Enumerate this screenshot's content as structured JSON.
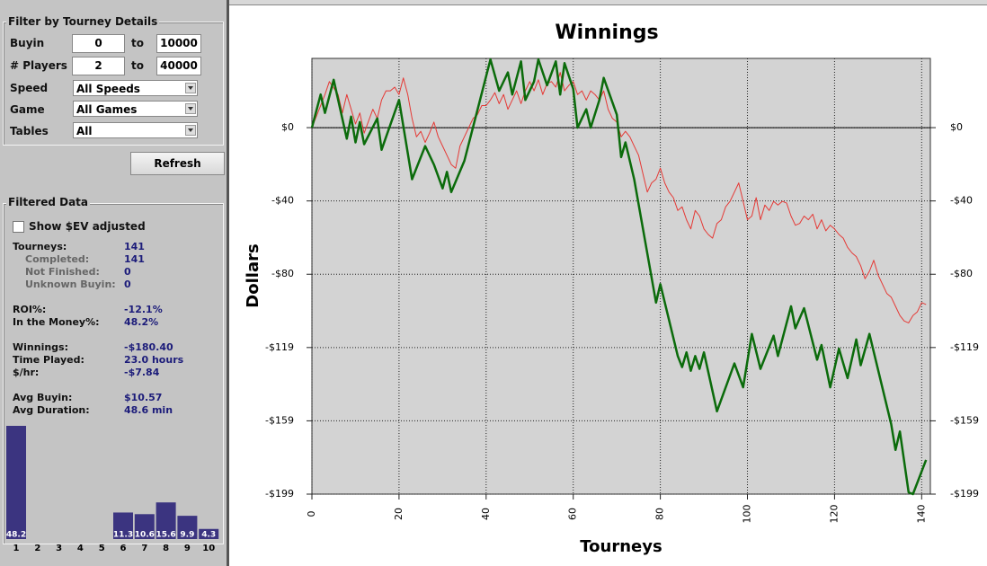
{
  "filter": {
    "title": "Filter by Tourney Details",
    "ranges": [
      {
        "label": "Buyin",
        "from": "0",
        "sep": "to",
        "to": "10000"
      },
      {
        "label": "# Players",
        "from": "2",
        "sep": "to",
        "to": "40000"
      }
    ],
    "selects": [
      {
        "label": "Speed",
        "value": "All Speeds"
      },
      {
        "label": "Game",
        "value": "All Games"
      },
      {
        "label": "Tables",
        "value": "All"
      }
    ],
    "button": "Refresh"
  },
  "filtered": {
    "title": "Filtered Data",
    "checkbox": "Show $EV adjusted",
    "stats": [
      [
        "Tourneys:",
        "141"
      ],
      [
        "Completed:",
        "141"
      ],
      [
        "Not Finished:",
        "0"
      ],
      [
        "Unknown Buyin:",
        "0"
      ],
      [
        "ROI%:",
        "-12.1%"
      ],
      [
        "In the Money%:",
        "48.2%"
      ],
      [
        "Winnings:",
        "-$180.40"
      ],
      [
        "Time Played:",
        "23.0 hours"
      ],
      [
        "$/hr:",
        "-$7.84"
      ],
      [
        "Avg Buyin:",
        "$10.57"
      ],
      [
        "Avg Duration:",
        "48.6 min"
      ]
    ]
  },
  "chart_data": [
    {
      "type": "line",
      "title": "Winnings",
      "x_label": "Tourneys",
      "y_label": "Dollars",
      "xlim": [
        0,
        142
      ],
      "ylim": [
        -199,
        37.6
      ],
      "xticks": [
        0,
        20,
        40,
        60,
        80,
        100,
        120,
        140
      ],
      "yticks": [
        {
          "value": 0,
          "label": "$0"
        },
        {
          "value": -39.8,
          "label": "-$40"
        },
        {
          "value": -79.6,
          "label": "-$80"
        },
        {
          "value": -119.4,
          "label": "-$119"
        },
        {
          "value": -159.2,
          "label": "-$159"
        },
        {
          "value": -199,
          "label": "-$199"
        }
      ],
      "grid": true,
      "series": [
        {
          "color": "#e53935",
          "width": 1,
          "x": [
            0,
            2,
            3,
            4,
            6,
            7,
            8,
            10,
            11,
            12,
            14,
            15,
            16,
            17,
            18,
            19,
            20,
            21,
            22,
            23,
            24,
            25,
            26,
            27,
            28,
            29,
            30,
            31,
            32,
            33,
            34,
            35,
            36,
            37,
            38,
            39,
            40,
            41,
            42,
            43,
            44,
            45,
            46,
            47,
            48,
            49,
            50,
            51,
            52,
            53,
            54,
            55,
            56,
            57,
            58,
            59,
            60,
            61,
            62,
            63,
            64,
            65,
            66,
            67,
            68,
            69,
            70,
            71,
            72,
            73,
            74,
            75,
            76,
            77,
            78,
            79,
            80,
            81,
            82,
            83,
            84,
            85,
            86,
            87,
            88,
            89,
            90,
            91,
            92,
            93,
            94,
            95,
            96,
            97,
            98,
            99,
            100,
            101,
            102,
            103,
            104,
            105,
            106,
            107,
            108,
            109,
            110,
            111,
            112,
            113,
            114,
            115,
            116,
            117,
            118,
            119,
            120,
            121,
            122,
            123,
            124,
            125,
            126,
            127,
            128,
            129,
            130,
            131,
            132,
            133,
            134,
            135,
            136,
            137,
            138,
            139,
            140,
            141
          ],
          "values": [
            0,
            12,
            18,
            25,
            18,
            8,
            18,
            2,
            8,
            -3,
            10,
            5,
            15,
            20,
            20,
            22,
            18,
            27,
            18,
            5,
            -5,
            -2,
            -8,
            -3,
            3,
            -5,
            -10,
            -15,
            -20,
            -22,
            -10,
            -5,
            0,
            5,
            7,
            12,
            12,
            15,
            19,
            13,
            18,
            10,
            15,
            20,
            13,
            20,
            25,
            20,
            26,
            18,
            24,
            25,
            22,
            30,
            20,
            23,
            25,
            18,
            20,
            15,
            20,
            18,
            15,
            20,
            10,
            5,
            3,
            -5,
            -2,
            -5,
            -10,
            -15,
            -25,
            -35,
            -30,
            -28,
            -22,
            -30,
            -35,
            -38,
            -45,
            -43,
            -50,
            -55,
            -45,
            -48,
            -55,
            -58,
            -60,
            -52,
            -50,
            -43,
            -40,
            -35,
            -30,
            -40,
            -50,
            -48,
            -38,
            -50,
            -42,
            -45,
            -40,
            -42,
            -40,
            -41,
            -48,
            -53,
            -52,
            -48,
            -50,
            -47,
            -55,
            -50,
            -56,
            -53,
            -55,
            -58,
            -60,
            -65,
            -68,
            -70,
            -75,
            -82,
            -78,
            -72,
            -80,
            -85,
            -90,
            -92,
            -97,
            -102,
            -105,
            -106,
            -102,
            -100,
            -95,
            -96
          ]
        },
        {
          "color": "#0b6b0b",
          "width": 2.5,
          "x": [
            0,
            2,
            3,
            5,
            8,
            9,
            10,
            11,
            12,
            15,
            16,
            20,
            23,
            26,
            28,
            30,
            31,
            32,
            35,
            41,
            43,
            45,
            46,
            48,
            49,
            51,
            52,
            54,
            56,
            57,
            58,
            60,
            61,
            63,
            64,
            66,
            67,
            70,
            71,
            72,
            74,
            79,
            80,
            84,
            85,
            86,
            87,
            88,
            89,
            90,
            93,
            97,
            99,
            101,
            103,
            106,
            107,
            110,
            111,
            113,
            116,
            117,
            119,
            121,
            123,
            125,
            126,
            128,
            133,
            134,
            135,
            137,
            138,
            141
          ],
          "values": [
            0,
            18,
            8,
            26,
            -6,
            6,
            -8,
            3,
            -9,
            5,
            -12,
            15,
            -28,
            -10,
            -20,
            -33,
            -24,
            -35,
            -18,
            37,
            20,
            30,
            18,
            36,
            15,
            25,
            37,
            23,
            36,
            18,
            35,
            21,
            0,
            10,
            0,
            15,
            27,
            7,
            -16,
            -8,
            -28,
            -95,
            -85,
            -124,
            -130,
            -122,
            -132,
            -124,
            -131,
            -122,
            -154,
            -128,
            -141,
            -112,
            -131,
            -113,
            -124,
            -97,
            -109,
            -98,
            -126,
            -118,
            -141,
            -120,
            -136,
            -115,
            -129,
            -112,
            -161,
            -175,
            -165,
            -198,
            -199,
            -180.4
          ]
        }
      ]
    },
    {
      "type": "bar",
      "categories": [
        "1",
        "2",
        "3",
        "4",
        "5",
        "6",
        "7",
        "8",
        "9",
        "10"
      ],
      "values": [
        48.2,
        null,
        null,
        null,
        null,
        11.3,
        10.6,
        15.6,
        9.9,
        4.3
      ],
      "color": "#3b3480"
    }
  ]
}
